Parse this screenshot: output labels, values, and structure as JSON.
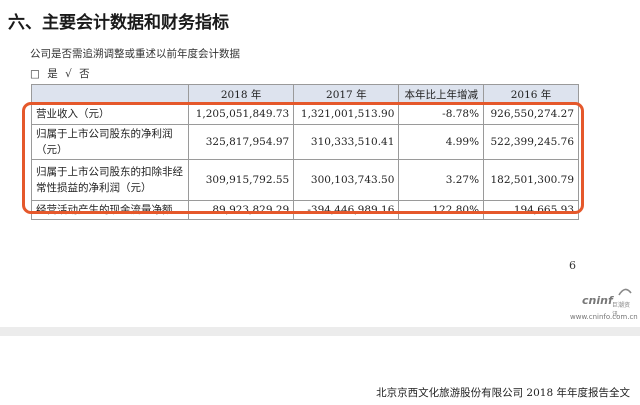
{
  "heading": "六、主要会计数据和财务指标",
  "subtitle": "公司是否需追溯调整或重述以前年度会计数据",
  "choice": {
    "box": "□",
    "yes": "是",
    "check": "√",
    "no": "否"
  },
  "table": {
    "headers": [
      "",
      "2018 年",
      "2017 年",
      "本年比上年增减",
      "2016 年"
    ],
    "rows": [
      {
        "label": "营业收入（元）",
        "values": [
          "1,205,051,849.73",
          "1,321,001,513.90",
          "-8.78%",
          "926,550,274.27"
        ]
      },
      {
        "label_lines": [
          "归属于上市公司股东的净利润",
          "（元）"
        ],
        "values": [
          "325,817,954.97",
          "310,333,510.41",
          "4.99%",
          "522,399,245.76"
        ]
      },
      {
        "label_lines": [
          "归属于上市公司股东的扣除非经",
          "常性损益的净利润（元）"
        ],
        "values": [
          "309,915,792.55",
          "300,103,743.50",
          "3.27%",
          "182,501,300.79"
        ]
      },
      {
        "label": "经营活动产生的现金流量净额",
        "values": [
          "89,923,829.29",
          "-394,446,989.16",
          "122.80%",
          "194,665.93"
        ]
      }
    ]
  },
  "page_number": "6",
  "logo": {
    "wordmark": "cninf",
    "chinese": "巨潮资讯",
    "url": "www.cninfo.com.cn"
  },
  "footer": "北京京西文化旅游股份有限公司 2018 年年度报告全文",
  "colors": {
    "highlight": "#e5582b",
    "header_bg": "#dde3ee"
  }
}
